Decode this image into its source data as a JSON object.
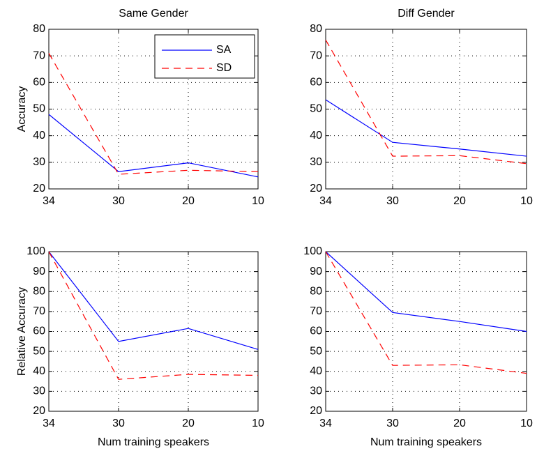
{
  "chart_data": [
    {
      "type": "line",
      "title": "Same Gender",
      "ylabel": "Accuracy",
      "categories": [
        "34",
        "30",
        "20",
        "10"
      ],
      "series": [
        {
          "name": "SA",
          "color": "#0000ff",
          "style": "solid",
          "values": [
            48,
            26.5,
            29.8,
            24.5
          ]
        },
        {
          "name": "SD",
          "color": "#ff0000",
          "style": "dashed",
          "values": [
            71,
            25.5,
            27,
            26.5
          ]
        }
      ],
      "ylim": [
        20,
        80
      ],
      "yticks": [
        20,
        30,
        40,
        50,
        60,
        70,
        80
      ],
      "grid": true,
      "legend": "upper right"
    },
    {
      "type": "line",
      "title": "Diff Gender",
      "categories": [
        "34",
        "30",
        "20",
        "10"
      ],
      "series": [
        {
          "color": "#0000ff",
          "style": "solid",
          "values": [
            53.5,
            37.5,
            35,
            32.3
          ]
        },
        {
          "color": "#ff0000",
          "style": "dashed",
          "values": [
            76,
            32.3,
            32.5,
            29.5
          ]
        }
      ],
      "ylim": [
        20,
        80
      ],
      "yticks": [
        20,
        30,
        40,
        50,
        60,
        70,
        80
      ],
      "grid": true
    },
    {
      "type": "line",
      "ylabel": "Relative Accuracy",
      "xlabel": "Num training speakers",
      "categories": [
        "34",
        "30",
        "20",
        "10"
      ],
      "series": [
        {
          "color": "#0000ff",
          "style": "solid",
          "values": [
            100,
            55,
            61.5,
            51
          ]
        },
        {
          "color": "#ff0000",
          "style": "dashed",
          "values": [
            100,
            36,
            38.5,
            38
          ]
        }
      ],
      "ylim": [
        20,
        100
      ],
      "yticks": [
        20,
        30,
        40,
        50,
        60,
        70,
        80,
        90,
        100
      ],
      "grid": true
    },
    {
      "type": "line",
      "xlabel": "Num training speakers",
      "categories": [
        "34",
        "30",
        "20",
        "10"
      ],
      "series": [
        {
          "color": "#0000ff",
          "style": "solid",
          "values": [
            100,
            69.5,
            65,
            60
          ]
        },
        {
          "color": "#ff0000",
          "style": "dashed",
          "values": [
            100,
            43,
            43.3,
            39
          ]
        }
      ],
      "ylim": [
        20,
        100
      ],
      "yticks": [
        20,
        30,
        40,
        50,
        60,
        70,
        80,
        90,
        100
      ],
      "grid": true
    }
  ]
}
